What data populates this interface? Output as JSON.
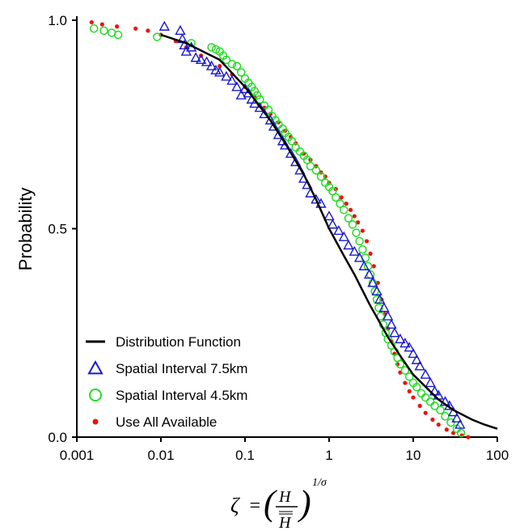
{
  "chart_data": {
    "type": "scatter",
    "title": "",
    "ylabel": "Probability",
    "xlabel": "ζ = (H / H̿)^(1/σ)",
    "xlabel_parts": {
      "zeta": "ζ",
      "eq": "=",
      "num": "H",
      "den": "H",
      "exp": "1/σ"
    },
    "xscale": "log",
    "xlim": [
      0.001,
      100
    ],
    "ylim": [
      0.0,
      1.0
    ],
    "xticks": [
      {
        "v": 0.001,
        "label": "0.001"
      },
      {
        "v": 0.01,
        "label": "0.01"
      },
      {
        "v": 0.1,
        "label": "0.1"
      },
      {
        "v": 1,
        "label": "1"
      },
      {
        "v": 10,
        "label": "10"
      },
      {
        "v": 100,
        "label": "100"
      }
    ],
    "yticks": [
      {
        "v": 0.0,
        "label": "0.0"
      },
      {
        "v": 0.5,
        "label": "0.5"
      },
      {
        "v": 1.0,
        "label": "1.0"
      }
    ],
    "grid": false,
    "legend_position": "bottom-left",
    "series": [
      {
        "name": "Distribution Function",
        "kind": "line",
        "color": "#000000",
        "points": [
          [
            0.01,
            0.965
          ],
          [
            0.02,
            0.945
          ],
          [
            0.05,
            0.905
          ],
          [
            0.1,
            0.84
          ],
          [
            0.2,
            0.76
          ],
          [
            0.3,
            0.705
          ],
          [
            0.5,
            0.63
          ],
          [
            0.7,
            0.57
          ],
          [
            1,
            0.5
          ],
          [
            1.5,
            0.435
          ],
          [
            2,
            0.39
          ],
          [
            3,
            0.32
          ],
          [
            5,
            0.24
          ],
          [
            7,
            0.195
          ],
          [
            10,
            0.15
          ],
          [
            15,
            0.115
          ],
          [
            20,
            0.09
          ],
          [
            30,
            0.065
          ],
          [
            50,
            0.042
          ],
          [
            70,
            0.03
          ],
          [
            100,
            0.02
          ]
        ]
      },
      {
        "name": "Spatial Interval 7.5km",
        "kind": "triangle",
        "color": "#1a1acc",
        "points": [
          [
            0.011,
            0.985
          ],
          [
            0.017,
            0.975
          ],
          [
            0.018,
            0.955
          ],
          [
            0.019,
            0.94
          ],
          [
            0.02,
            0.925
          ],
          [
            0.023,
            0.935
          ],
          [
            0.026,
            0.91
          ],
          [
            0.03,
            0.905
          ],
          [
            0.035,
            0.9
          ],
          [
            0.04,
            0.89
          ],
          [
            0.045,
            0.88
          ],
          [
            0.05,
            0.875
          ],
          [
            0.06,
            0.865
          ],
          [
            0.07,
            0.855
          ],
          [
            0.08,
            0.84
          ],
          [
            0.09,
            0.82
          ],
          [
            0.1,
            0.835
          ],
          [
            0.11,
            0.825
          ],
          [
            0.12,
            0.81
          ],
          [
            0.13,
            0.8
          ],
          [
            0.15,
            0.79
          ],
          [
            0.17,
            0.775
          ],
          [
            0.2,
            0.76
          ],
          [
            0.22,
            0.745
          ],
          [
            0.25,
            0.725
          ],
          [
            0.28,
            0.71
          ],
          [
            0.3,
            0.7
          ],
          [
            0.35,
            0.68
          ],
          [
            0.4,
            0.66
          ],
          [
            0.45,
            0.64
          ],
          [
            0.5,
            0.62
          ],
          [
            0.55,
            0.605
          ],
          [
            0.6,
            0.585
          ],
          [
            0.7,
            0.57
          ],
          [
            0.8,
            0.56
          ],
          [
            1.0,
            0.53
          ],
          [
            1.1,
            0.51
          ],
          [
            1.3,
            0.495
          ],
          [
            1.5,
            0.48
          ],
          [
            1.7,
            0.46
          ],
          [
            2.0,
            0.445
          ],
          [
            2.3,
            0.43
          ],
          [
            2.6,
            0.41
          ],
          [
            3.0,
            0.39
          ],
          [
            3.3,
            0.37
          ],
          [
            3.7,
            0.35
          ],
          [
            4.0,
            0.33
          ],
          [
            4.5,
            0.31
          ],
          [
            5.0,
            0.29
          ],
          [
            5.5,
            0.27
          ],
          [
            6.0,
            0.25
          ],
          [
            7.0,
            0.235
          ],
          [
            8.0,
            0.225
          ],
          [
            9.0,
            0.215
          ],
          [
            10.0,
            0.2
          ],
          [
            11.0,
            0.185
          ],
          [
            12.0,
            0.17
          ],
          [
            14.0,
            0.15
          ],
          [
            16.0,
            0.13
          ],
          [
            18.0,
            0.11
          ],
          [
            20.0,
            0.1
          ],
          [
            24.0,
            0.085
          ],
          [
            27.0,
            0.075
          ],
          [
            30.0,
            0.06
          ],
          [
            33.0,
            0.045
          ],
          [
            36.0,
            0.03
          ]
        ]
      },
      {
        "name": "Spatial Interval 4.5km",
        "kind": "circle",
        "color": "#22dd22",
        "points": [
          [
            0.0016,
            0.98
          ],
          [
            0.0021,
            0.975
          ],
          [
            0.0026,
            0.97
          ],
          [
            0.0031,
            0.965
          ],
          [
            0.009,
            0.96
          ],
          [
            0.023,
            0.945
          ],
          [
            0.04,
            0.935
          ],
          [
            0.045,
            0.93
          ],
          [
            0.05,
            0.925
          ],
          [
            0.055,
            0.915
          ],
          [
            0.06,
            0.905
          ],
          [
            0.07,
            0.895
          ],
          [
            0.08,
            0.89
          ],
          [
            0.09,
            0.875
          ],
          [
            0.1,
            0.86
          ],
          [
            0.11,
            0.85
          ],
          [
            0.12,
            0.84
          ],
          [
            0.13,
            0.83
          ],
          [
            0.14,
            0.82
          ],
          [
            0.15,
            0.81
          ],
          [
            0.17,
            0.795
          ],
          [
            0.19,
            0.785
          ],
          [
            0.21,
            0.77
          ],
          [
            0.23,
            0.76
          ],
          [
            0.25,
            0.75
          ],
          [
            0.28,
            0.74
          ],
          [
            0.3,
            0.73
          ],
          [
            0.33,
            0.72
          ],
          [
            0.36,
            0.71
          ],
          [
            0.4,
            0.695
          ],
          [
            0.45,
            0.685
          ],
          [
            0.5,
            0.675
          ],
          [
            0.55,
            0.665
          ],
          [
            0.6,
            0.65
          ],
          [
            0.7,
            0.64
          ],
          [
            0.8,
            0.625
          ],
          [
            0.9,
            0.61
          ],
          [
            1.0,
            0.6
          ],
          [
            1.1,
            0.59
          ],
          [
            1.2,
            0.575
          ],
          [
            1.35,
            0.56
          ],
          [
            1.5,
            0.545
          ],
          [
            1.7,
            0.525
          ],
          [
            1.9,
            0.51
          ],
          [
            2.1,
            0.49
          ],
          [
            2.3,
            0.47
          ],
          [
            2.5,
            0.45
          ],
          [
            2.7,
            0.43
          ],
          [
            2.9,
            0.41
          ],
          [
            3.1,
            0.39
          ],
          [
            3.3,
            0.37
          ],
          [
            3.5,
            0.35
          ],
          [
            3.7,
            0.33
          ],
          [
            3.9,
            0.31
          ],
          [
            4.1,
            0.29
          ],
          [
            4.4,
            0.27
          ],
          [
            4.7,
            0.25
          ],
          [
            5.0,
            0.235
          ],
          [
            5.5,
            0.22
          ],
          [
            6.0,
            0.205
          ],
          [
            6.5,
            0.19
          ],
          [
            7.0,
            0.175
          ],
          [
            8.0,
            0.16
          ],
          [
            9.0,
            0.145
          ],
          [
            10.0,
            0.13
          ],
          [
            11.0,
            0.12
          ],
          [
            12.5,
            0.105
          ],
          [
            14.0,
            0.095
          ],
          [
            16.0,
            0.085
          ],
          [
            18.0,
            0.075
          ],
          [
            21.0,
            0.065
          ],
          [
            24.0,
            0.05
          ],
          [
            28.0,
            0.035
          ],
          [
            33.0,
            0.02
          ],
          [
            37.0,
            0.01
          ]
        ]
      },
      {
        "name": "Use All Available",
        "kind": "dot",
        "color": "#ee1111",
        "points": [
          [
            0.0015,
            0.995
          ],
          [
            0.002,
            0.99
          ],
          [
            0.003,
            0.985
          ],
          [
            0.005,
            0.98
          ],
          [
            0.007,
            0.975
          ],
          [
            0.01,
            0.965
          ],
          [
            0.015,
            0.95
          ],
          [
            0.02,
            0.935
          ],
          [
            0.03,
            0.915
          ],
          [
            0.05,
            0.89
          ],
          [
            0.07,
            0.87
          ],
          [
            0.1,
            0.84
          ],
          [
            0.13,
            0.815
          ],
          [
            0.17,
            0.79
          ],
          [
            0.2,
            0.775
          ],
          [
            0.25,
            0.755
          ],
          [
            0.3,
            0.735
          ],
          [
            0.35,
            0.72
          ],
          [
            0.4,
            0.705
          ],
          [
            0.5,
            0.68
          ],
          [
            0.6,
            0.665
          ],
          [
            0.7,
            0.65
          ],
          [
            0.8,
            0.635
          ],
          [
            0.9,
            0.625
          ],
          [
            1.0,
            0.61
          ],
          [
            1.2,
            0.595
          ],
          [
            1.4,
            0.575
          ],
          [
            1.6,
            0.56
          ],
          [
            1.8,
            0.545
          ],
          [
            2.0,
            0.53
          ],
          [
            2.2,
            0.515
          ],
          [
            2.5,
            0.495
          ],
          [
            2.8,
            0.47
          ],
          [
            3.1,
            0.44
          ],
          [
            3.4,
            0.41
          ],
          [
            3.8,
            0.37
          ],
          [
            4.2,
            0.33
          ],
          [
            4.6,
            0.295
          ],
          [
            5.0,
            0.26
          ],
          [
            5.5,
            0.23
          ],
          [
            6.0,
            0.2
          ],
          [
            6.5,
            0.175
          ],
          [
            7.0,
            0.155
          ],
          [
            8.0,
            0.13
          ],
          [
            9.0,
            0.11
          ],
          [
            10.0,
            0.095
          ],
          [
            12.0,
            0.075
          ],
          [
            14.0,
            0.058
          ],
          [
            17.0,
            0.042
          ],
          [
            20.0,
            0.03
          ],
          [
            25.0,
            0.018
          ],
          [
            30.0,
            0.01
          ],
          [
            38.0,
            0.004
          ],
          [
            45.0,
            0.0
          ]
        ]
      }
    ]
  }
}
